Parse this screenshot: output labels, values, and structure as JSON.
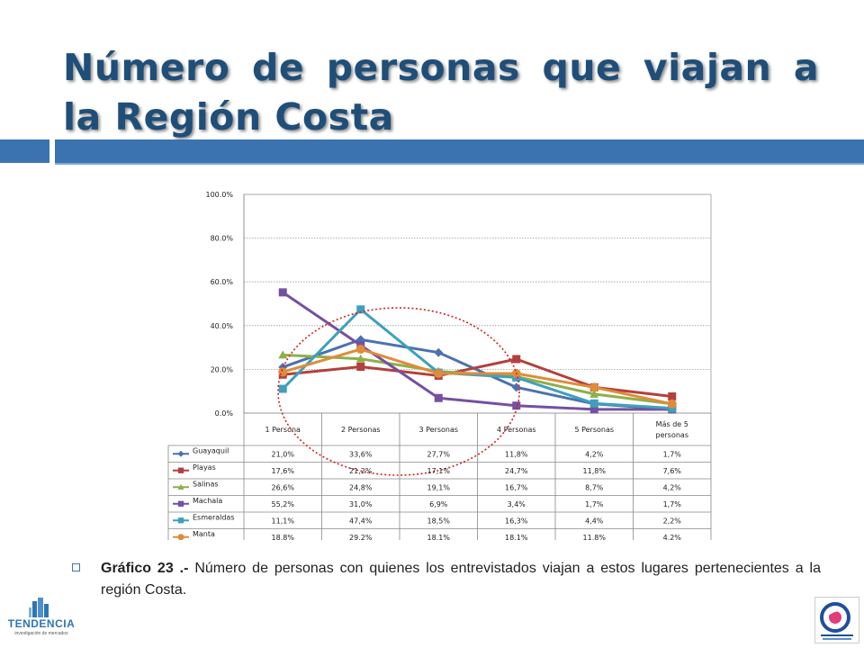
{
  "slide": {
    "title": "Número de personas que viajan a la Región Costa"
  },
  "caption": {
    "label": "Gráfico 23 .-",
    "text": "Número de personas con quienes los entrevistados viajan a estos lugares pertenecientes a la región Costa."
  },
  "logos": {
    "left_name": "TENDENCIA",
    "left_sub": "investigación de mercados"
  },
  "colors": {
    "title": "#1f4e79",
    "band": "#3a73b0",
    "ellipse": "#d42020"
  },
  "chart_data": {
    "type": "line",
    "categories": [
      "1 Persona",
      "2 Personas",
      "3 Personas",
      "4 Personas",
      "5 Personas",
      "Más de 5 personas"
    ],
    "ylim": [
      0,
      100
    ],
    "yticks": [
      "0.0%",
      "20.0%",
      "40.0%",
      "60.0%",
      "80.0%",
      "100.0%"
    ],
    "grid": true,
    "legend": "data-table",
    "series": [
      {
        "name": "Guayaquil",
        "color": "#4a72b0",
        "marker": "diamond",
        "values": [
          21.0,
          33.6,
          27.7,
          11.8,
          4.2,
          1.7
        ],
        "labels": [
          "21,0%",
          "33,6%",
          "27,7%",
          "11,8%",
          "4,2%",
          "1,7%"
        ]
      },
      {
        "name": "Playas",
        "color": "#b3403c",
        "marker": "square",
        "values": [
          17.6,
          21.2,
          17.1,
          24.7,
          11.8,
          7.6
        ],
        "labels": [
          "17,6%",
          "21,2%",
          "17,1%",
          "24,7%",
          "11,8%",
          "7,6%"
        ]
      },
      {
        "name": "Salinas",
        "color": "#8eb049",
        "marker": "triangle",
        "values": [
          26.6,
          24.8,
          19.1,
          16.7,
          8.7,
          4.2
        ],
        "labels": [
          "26,6%",
          "24,8%",
          "19,1%",
          "16,7%",
          "8,7%",
          "4,2%"
        ]
      },
      {
        "name": "Machala",
        "color": "#7550a0",
        "marker": "square",
        "values": [
          55.2,
          31.0,
          6.9,
          3.4,
          1.7,
          1.7
        ],
        "labels": [
          "55,2%",
          "31,0%",
          "6,9%",
          "3,4%",
          "1,7%",
          "1,7%"
        ]
      },
      {
        "name": "Esmeraldas",
        "color": "#3fa0bc",
        "marker": "square",
        "values": [
          11.1,
          47.4,
          18.5,
          16.3,
          4.4,
          2.2
        ],
        "labels": [
          "11,1%",
          "47,4%",
          "18,5%",
          "16,3%",
          "4,4%",
          "2,2%"
        ]
      },
      {
        "name": "Manta",
        "color": "#e08b3a",
        "marker": "circle",
        "values": [
          18.8,
          29.2,
          18.1,
          18.1,
          11.8,
          4.2
        ],
        "labels": [
          "18,8%",
          "29,2%",
          "18,1%",
          "18,1%",
          "11,8%",
          "4,2%"
        ]
      }
    ]
  }
}
